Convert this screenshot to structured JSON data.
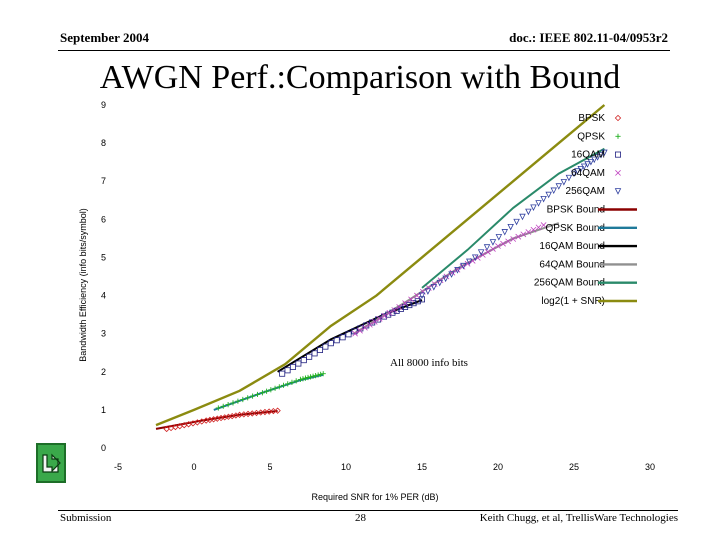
{
  "header": {
    "left": "September 2004",
    "right": "doc.: IEEE 802.11-04/0953r2"
  },
  "slide_title": "AWGN Perf.:Comparison with Bound",
  "footer": {
    "left": "Submission",
    "center": "28",
    "right": "Keith Chugg, et al, TrellisWare Technologies"
  },
  "nav": {
    "icon": "return-arrow-icon"
  },
  "chart_data": {
    "type": "line",
    "title": "",
    "xlabel": "Required SNR for 1% PER (dB)",
    "ylabel": "Bandwidth Efficiency (info bits/symbol)",
    "xlim": [
      -5,
      30
    ],
    "ylim": [
      0,
      9
    ],
    "xticks": [
      -5,
      0,
      5,
      10,
      15,
      20,
      25,
      30
    ],
    "yticks": [
      0,
      1,
      2,
      3,
      4,
      5,
      6,
      7,
      8,
      9
    ],
    "grid": false,
    "legend_position": "top-right",
    "annotation": "All 8000 info bits",
    "colors": {
      "marker": "#c040c0",
      "bpsk_bound": "#8b0000",
      "qpsk_bound": "#1f7a9a",
      "qam16_bound": "#000000",
      "qam64_bound": "#909090",
      "qam256_bound": "#2a8a6a",
      "capacity": "#8b8b10"
    },
    "series": [
      {
        "name": "BPSK",
        "kind": "markers",
        "marker": "diamond",
        "color": "#d02020",
        "points": [
          [
            -1.8,
            0.5
          ],
          [
            0.8,
            0.72
          ],
          [
            3.0,
            0.87
          ],
          [
            5.5,
            0.98
          ]
        ]
      },
      {
        "name": "QPSK",
        "kind": "markers",
        "marker": "plus",
        "color": "#20b020",
        "points": [
          [
            1.6,
            1.05
          ],
          [
            4.5,
            1.45
          ],
          [
            7.0,
            1.8
          ],
          [
            8.5,
            1.95
          ]
        ]
      },
      {
        "name": "16QAM",
        "kind": "markers",
        "marker": "square",
        "color": "#202080",
        "points": [
          [
            5.8,
            1.95
          ],
          [
            9.0,
            2.75
          ],
          [
            12.5,
            3.45
          ],
          [
            15.0,
            3.9
          ]
        ]
      },
      {
        "name": "64QAM",
        "kind": "markers",
        "marker": "x",
        "color": "#c040c0",
        "points": [
          [
            10.6,
            3.0
          ],
          [
            13.5,
            3.7
          ],
          [
            17.0,
            4.6
          ],
          [
            20.0,
            5.3
          ],
          [
            23.0,
            5.85
          ]
        ]
      },
      {
        "name": "256QAM",
        "kind": "markers",
        "marker": "triangle-down",
        "color": "#3040a0",
        "points": [
          [
            15.0,
            4.0
          ],
          [
            18.5,
            5.0
          ],
          [
            22.0,
            6.2
          ],
          [
            25.0,
            7.2
          ],
          [
            27.0,
            7.75
          ]
        ]
      },
      {
        "name": "BPSK Bound",
        "kind": "line",
        "color": "#8b0000",
        "points": [
          [
            -2.5,
            0.5
          ],
          [
            0.5,
            0.72
          ],
          [
            3.0,
            0.87
          ],
          [
            5.5,
            0.97
          ]
        ]
      },
      {
        "name": "QPSK Bound",
        "kind": "line",
        "color": "#1f7a9a",
        "points": [
          [
            1.3,
            1.0
          ],
          [
            4.5,
            1.45
          ],
          [
            7.0,
            1.78
          ],
          [
            8.5,
            1.92
          ]
        ]
      },
      {
        "name": "16QAM Bound",
        "kind": "line",
        "color": "#000000",
        "points": [
          [
            5.5,
            2.0
          ],
          [
            9.0,
            2.85
          ],
          [
            12.5,
            3.5
          ],
          [
            15.0,
            3.88
          ]
        ]
      },
      {
        "name": "64QAM Bound",
        "kind": "line",
        "color": "#909090",
        "points": [
          [
            10.5,
            3.0
          ],
          [
            14.0,
            3.85
          ],
          [
            17.5,
            4.75
          ],
          [
            21.0,
            5.5
          ],
          [
            24.0,
            5.9
          ]
        ]
      },
      {
        "name": "256QAM Bound",
        "kind": "line",
        "color": "#2a8a6a",
        "points": [
          [
            15.0,
            4.2
          ],
          [
            18.0,
            5.2
          ],
          [
            21.0,
            6.3
          ],
          [
            24.0,
            7.2
          ],
          [
            27.0,
            7.85
          ]
        ]
      },
      {
        "name": "log2(1 + SNR)",
        "kind": "line",
        "color": "#8b8b10",
        "points": [
          [
            -2.5,
            0.6
          ],
          [
            0,
            1.0
          ],
          [
            3,
            1.5
          ],
          [
            6,
            2.2
          ],
          [
            9,
            3.2
          ],
          [
            12,
            4.0
          ],
          [
            15,
            5.0
          ],
          [
            18,
            6.0
          ],
          [
            21,
            7.0
          ],
          [
            24,
            8.0
          ],
          [
            27,
            9.0
          ]
        ]
      }
    ]
  }
}
